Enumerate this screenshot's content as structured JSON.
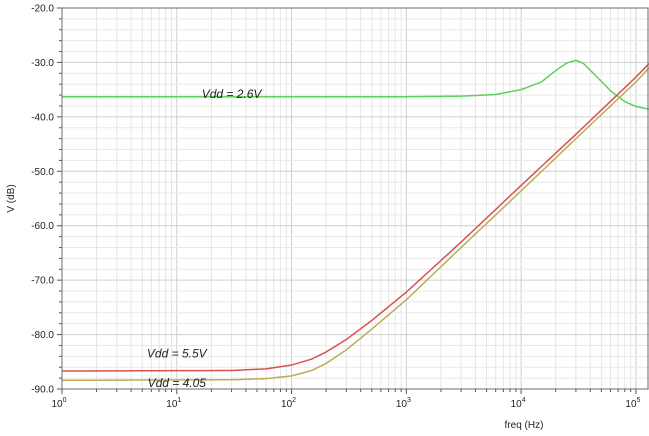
{
  "chart_data": {
    "type": "line",
    "title": "",
    "xlabel": "freq (Hz)",
    "ylabel": "V (dB)",
    "xscale": "log",
    "xlim": [
      1,
      130000
    ],
    "ylim": [
      -90,
      -20
    ],
    "grid": true,
    "x_ticks": [
      {
        "value": 1,
        "base": "10",
        "exp": "0"
      },
      {
        "value": 10,
        "base": "10",
        "exp": "1"
      },
      {
        "value": 100,
        "base": "10",
        "exp": "2"
      },
      {
        "value": 1000,
        "base": "10",
        "exp": "3"
      },
      {
        "value": 10000,
        "base": "10",
        "exp": "4"
      },
      {
        "value": 100000,
        "base": "10",
        "exp": "5"
      }
    ],
    "y_ticks": [
      {
        "value": -20,
        "label": "-20.0"
      },
      {
        "value": -30,
        "label": "-30.0"
      },
      {
        "value": -40,
        "label": "-40.0"
      },
      {
        "value": -50,
        "label": "-50.0"
      },
      {
        "value": -60,
        "label": "-60.0"
      },
      {
        "value": -70,
        "label": "-70.0"
      },
      {
        "value": -80,
        "label": "-80.0"
      },
      {
        "value": -90,
        "label": "-90.0"
      }
    ],
    "series": [
      {
        "name": "Vdd = 2.6V",
        "color": "#5ad35a",
        "label_at": [
          30,
          -36.5
        ],
        "points": [
          [
            1,
            -36.3
          ],
          [
            100,
            -36.3
          ],
          [
            1000,
            -36.3
          ],
          [
            3000,
            -36.2
          ],
          [
            6000,
            -35.9
          ],
          [
            10000,
            -35
          ],
          [
            15000,
            -33.6
          ],
          [
            20000,
            -31.5
          ],
          [
            25000,
            -30.1
          ],
          [
            30000,
            -29.6
          ],
          [
            35000,
            -30.2
          ],
          [
            45000,
            -32.5
          ],
          [
            60000,
            -35.2
          ],
          [
            80000,
            -37.2
          ],
          [
            100000,
            -38.1
          ],
          [
            130000,
            -38.6
          ]
        ]
      },
      {
        "name": "Vdd = 5.5V",
        "color": "#d85050",
        "label_at": [
          10,
          -84.2
        ],
        "points": [
          [
            1,
            -86.7
          ],
          [
            30,
            -86.6
          ],
          [
            60,
            -86.3
          ],
          [
            100,
            -85.6
          ],
          [
            150,
            -84.5
          ],
          [
            200,
            -83.2
          ],
          [
            300,
            -80.9
          ],
          [
            500,
            -77.4
          ],
          [
            1000,
            -72.2
          ],
          [
            3000,
            -63.0
          ],
          [
            10000,
            -52.6
          ],
          [
            30000,
            -43.2
          ],
          [
            100000,
            -32.7
          ],
          [
            130000,
            -30.2
          ]
        ]
      },
      {
        "name": "Vdd = 4.05",
        "color": "#b8ad55",
        "label_at": [
          10,
          -89.6
        ],
        "points": [
          [
            1,
            -88.4
          ],
          [
            30,
            -88.3
          ],
          [
            60,
            -88.1
          ],
          [
            100,
            -87.6
          ],
          [
            150,
            -86.6
          ],
          [
            200,
            -85.3
          ],
          [
            300,
            -82.8
          ],
          [
            500,
            -79.0
          ],
          [
            1000,
            -73.6
          ],
          [
            3000,
            -64.0
          ],
          [
            10000,
            -53.6
          ],
          [
            30000,
            -44.0
          ],
          [
            100000,
            -33.6
          ],
          [
            130000,
            -31.0
          ]
        ]
      }
    ]
  }
}
